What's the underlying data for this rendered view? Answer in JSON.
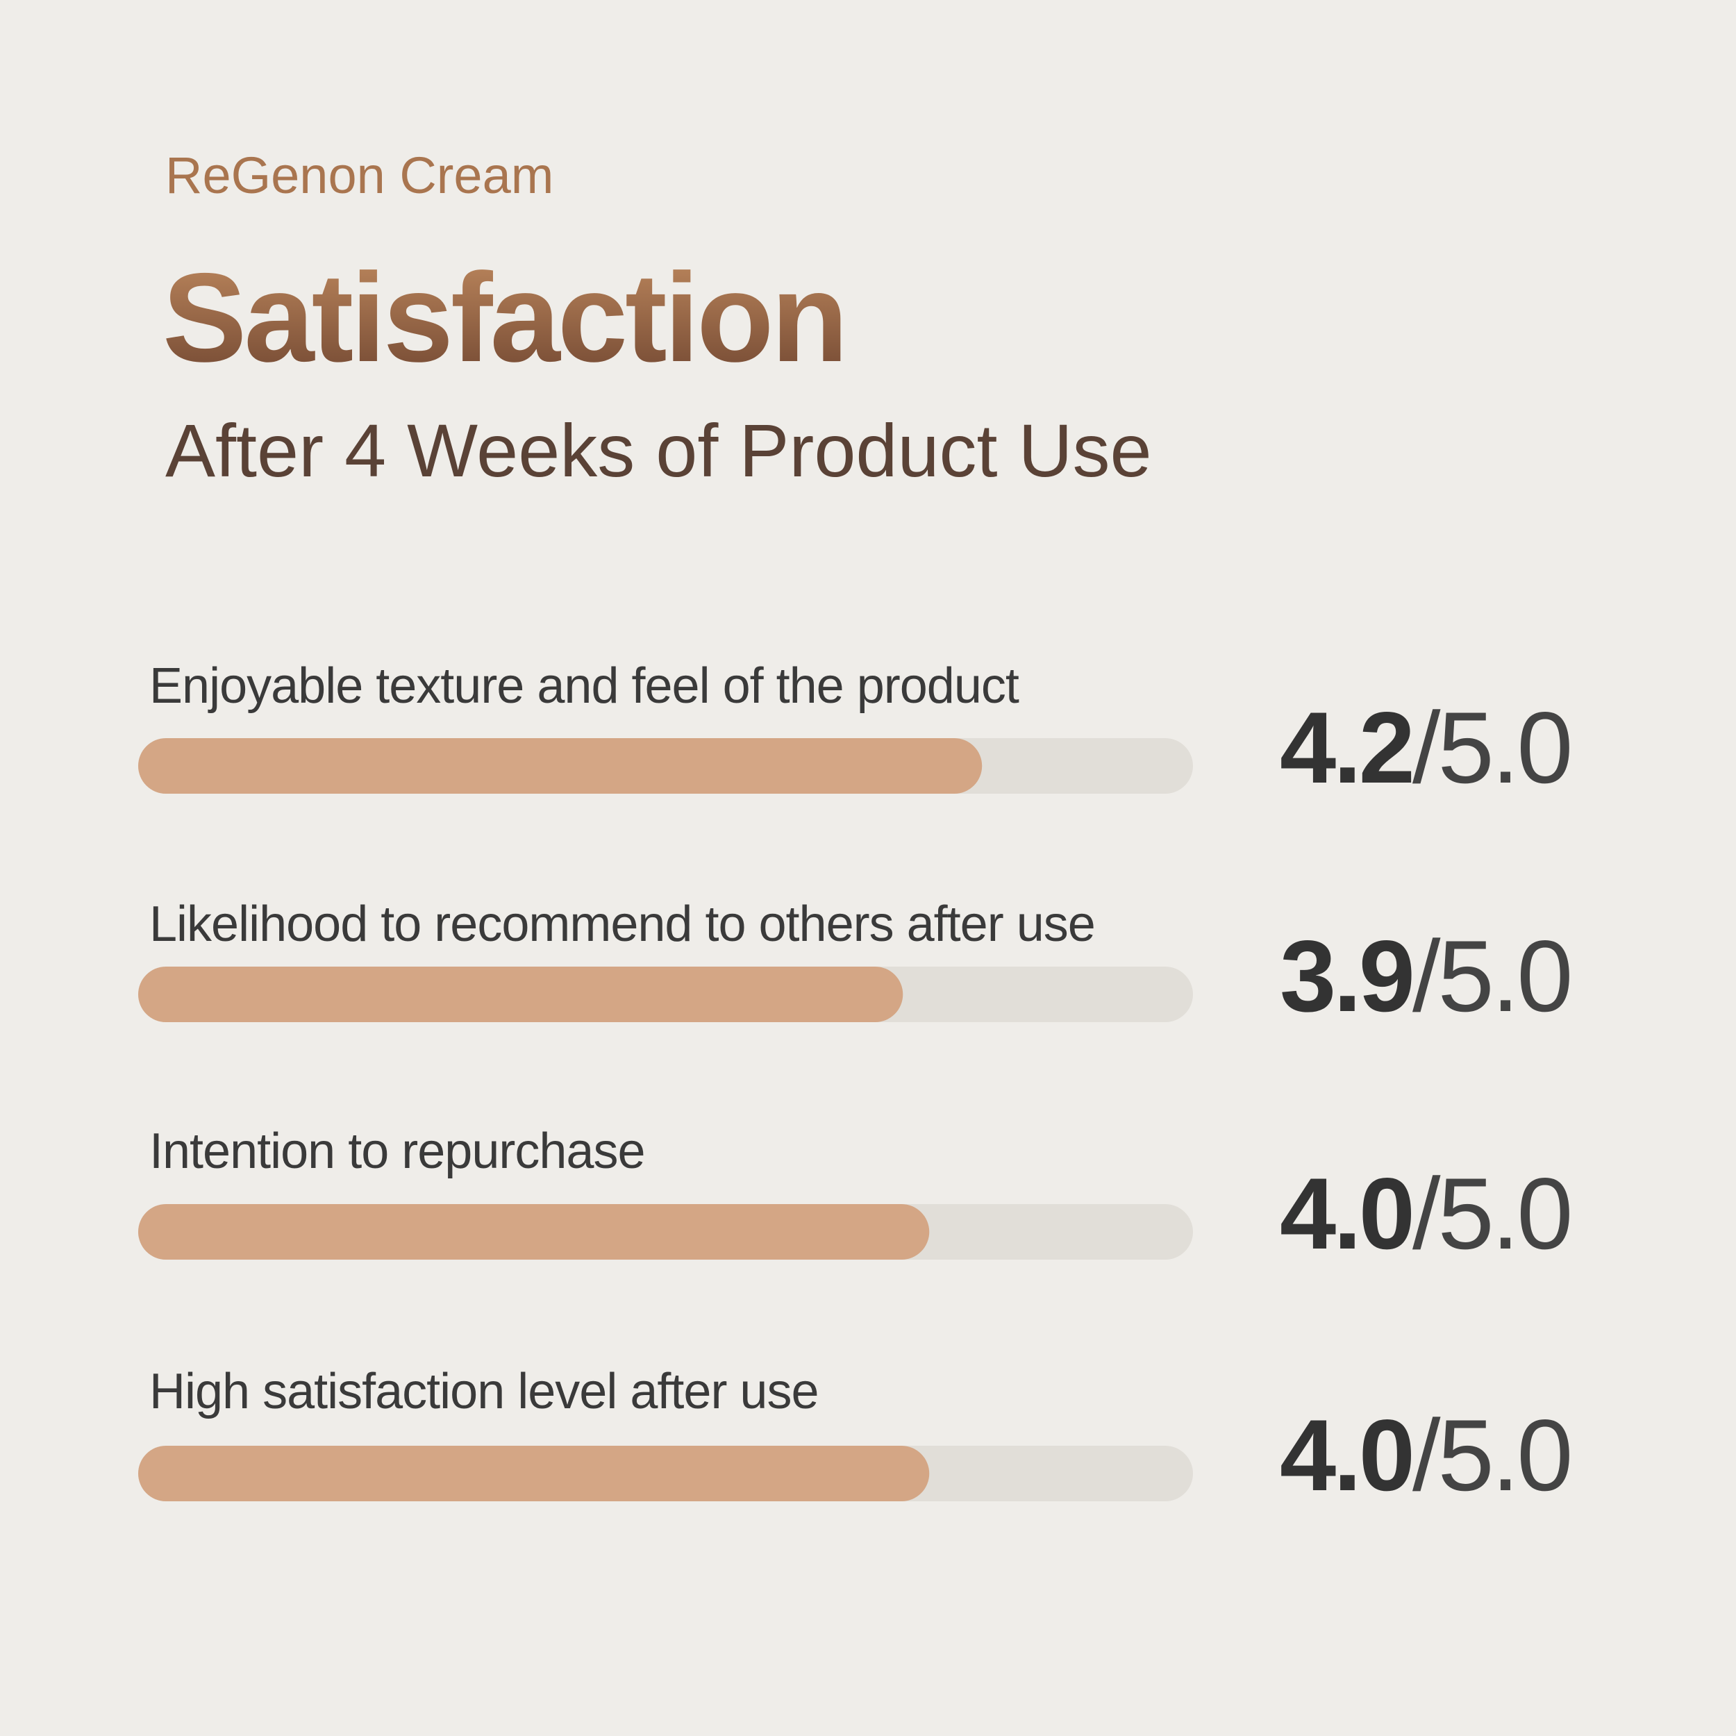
{
  "chart_data": {
    "type": "bar",
    "orientation": "horizontal",
    "brand": "ReGenon Cream",
    "title": "Satisfaction",
    "subtitle": "After 4 Weeks of Product Use",
    "categories": [
      "Enjoyable texture and feel of the product",
      "Likelihood to recommend to others after use",
      "Intention to repurchase",
      "High satisfaction level after use"
    ],
    "values": [
      4.2,
      3.9,
      4.0,
      4.0
    ],
    "value_labels": [
      "4.2",
      "3.9",
      "4.0",
      "4.0"
    ],
    "scale_label": "/5.0",
    "xlim": [
      1,
      5
    ],
    "color": "#d4a685",
    "track_color": "#e1ded8"
  }
}
